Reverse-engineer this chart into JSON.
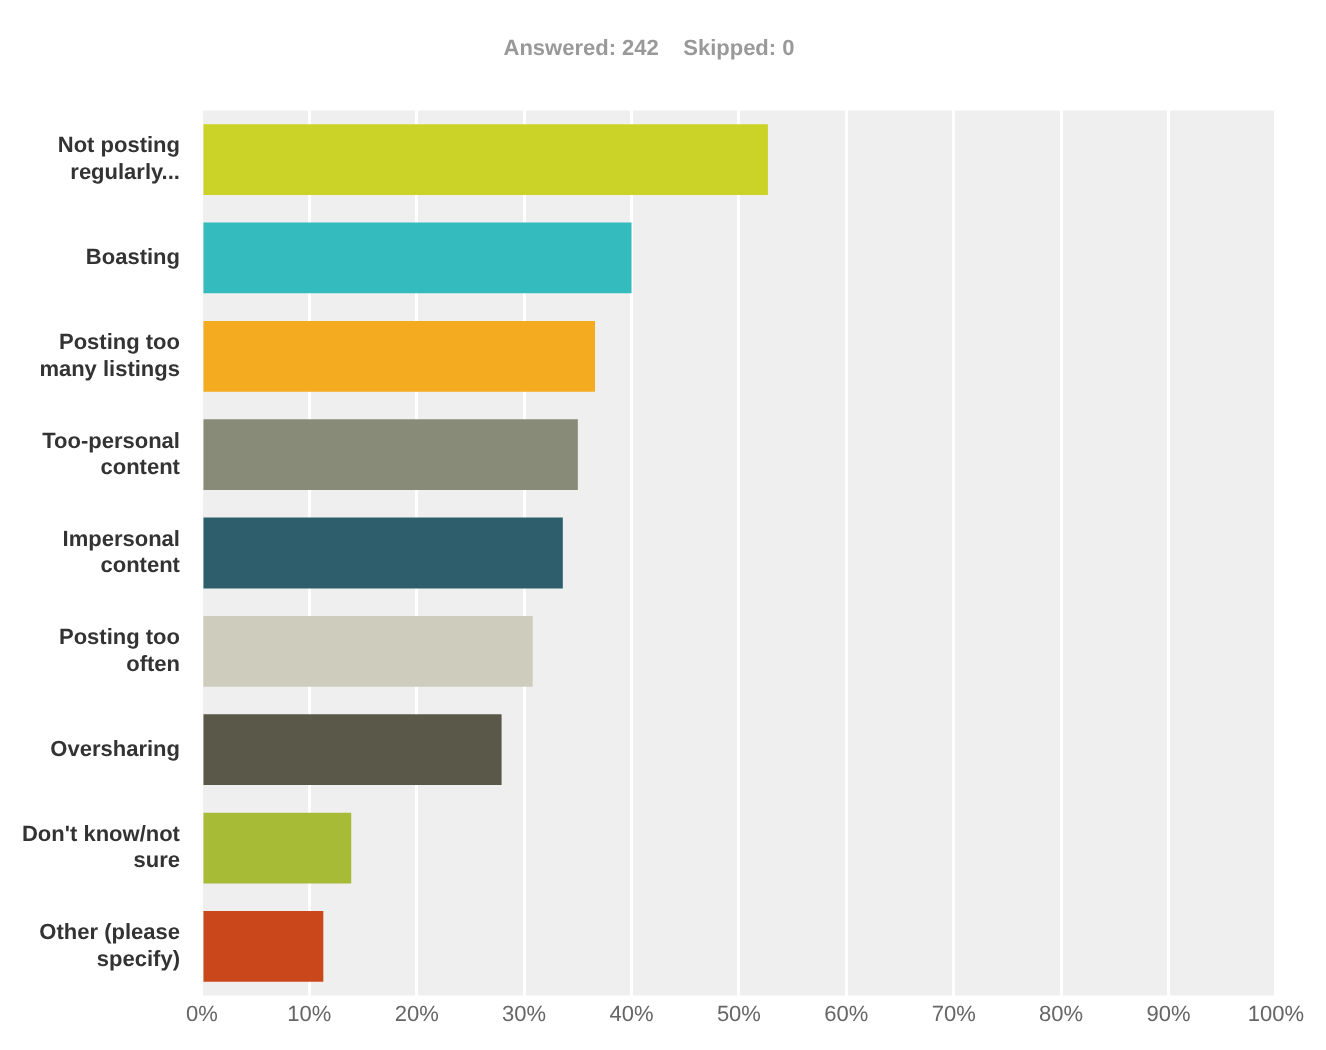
{
  "chart_data": {
    "type": "bar",
    "orientation": "horizontal",
    "title": "Answered: 242    Skipped: 0",
    "categories": [
      "Not posting regularly...",
      "Boasting",
      "Posting too many listings",
      "Too-personal content",
      "Impersonal content",
      "Posting too often",
      "Oversharing",
      "Don't know/not sure",
      "Other (please specify)"
    ],
    "values": [
      52.7,
      40.0,
      36.6,
      35.0,
      33.6,
      30.8,
      27.9,
      13.9,
      11.3
    ],
    "colors": [
      "#cbd329",
      "#33bbbe",
      "#f4ab1f",
      "#898b79",
      "#2e5e6b",
      "#ceccbd",
      "#5a5849",
      "#a7bb37",
      "#c9471b"
    ],
    "xlim": [
      0,
      100
    ],
    "xticks": [
      {
        "value": 0,
        "label": "0%"
      },
      {
        "value": 10,
        "label": "10%"
      },
      {
        "value": 20,
        "label": "20%"
      },
      {
        "value": 30,
        "label": "30%"
      },
      {
        "value": 40,
        "label": "40%"
      },
      {
        "value": 50,
        "label": "50%"
      },
      {
        "value": 60,
        "label": "60%"
      },
      {
        "value": 70,
        "label": "70%"
      },
      {
        "value": 80,
        "label": "80%"
      },
      {
        "value": 90,
        "label": "90%"
      },
      {
        "value": 100,
        "label": "100%"
      }
    ],
    "grid": "x",
    "legend": false
  }
}
